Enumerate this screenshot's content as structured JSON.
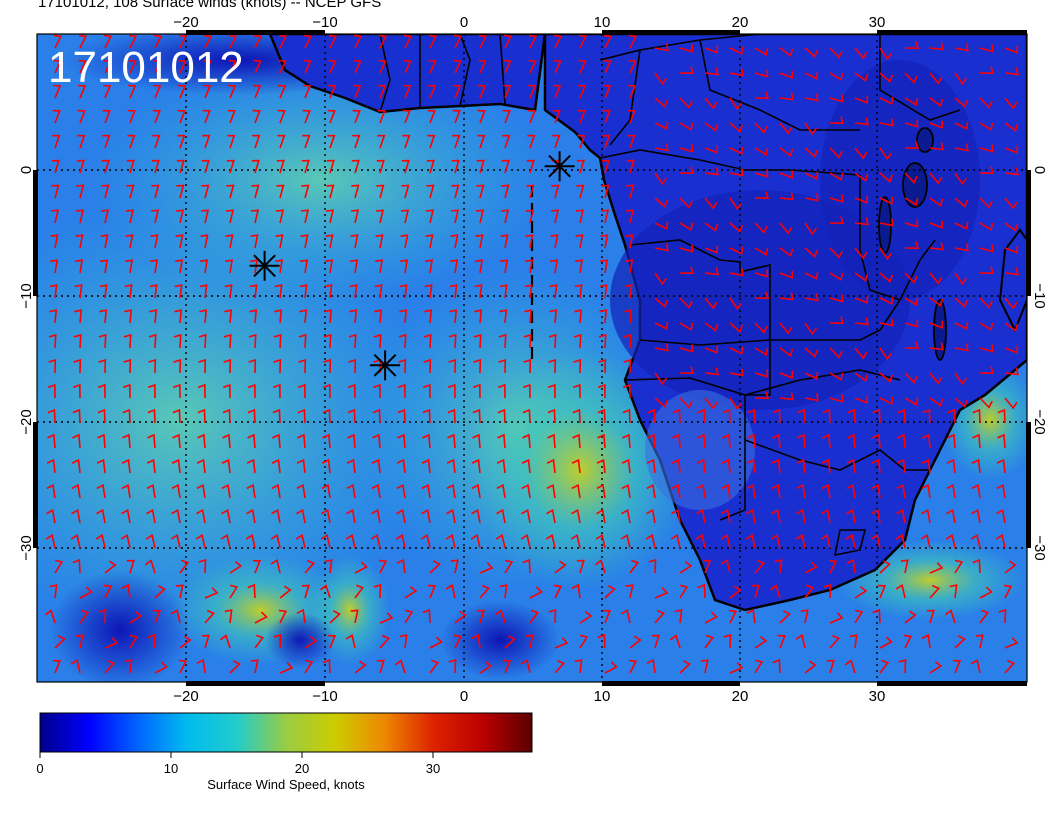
{
  "title": "17101012, 108 Surface winds (knots) -- NCEP GFS",
  "date_stamp": "17101012",
  "lon_labels": [
    "−20",
    "−10",
    "0",
    "10",
    "20",
    "30"
  ],
  "lat_labels": [
    "0",
    "−10",
    "−20",
    "−30"
  ],
  "colorbar": {
    "label": "Surface Wind Speed, knots",
    "tick_labels": [
      "0",
      "10",
      "20",
      "30"
    ],
    "stops": [
      "#00008a",
      "#0000ff",
      "#0066ff",
      "#00bbee",
      "#22cccc",
      "#99cc44",
      "#cccc00",
      "#ee8800",
      "#dd2200",
      "#bb0000",
      "#5a0000"
    ]
  },
  "colors": {
    "barbs": "#ff0000",
    "ocean_base": "#1f5fe8",
    "land": "#1a2fd0",
    "coast": "#000000",
    "storm_marker": "#000000"
  },
  "storm_markers": [
    {
      "lon": 6.9,
      "lat": 0.3
    },
    {
      "lon": -14.4,
      "lat": -7.6
    },
    {
      "lon": -5.7,
      "lat": -15.5
    }
  ]
}
